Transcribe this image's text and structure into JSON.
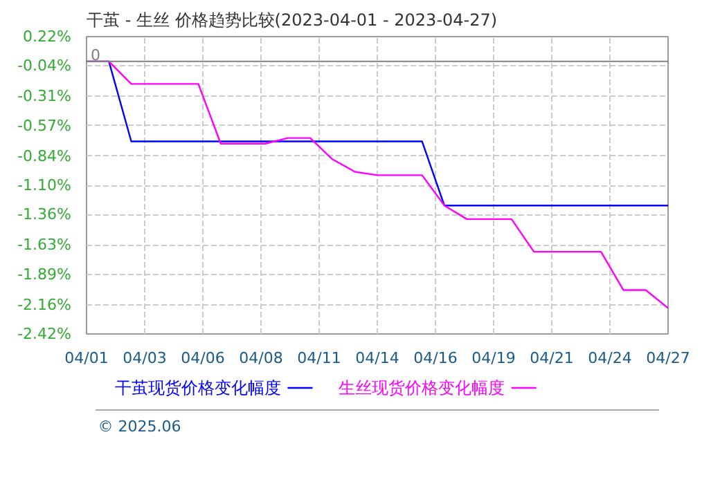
{
  "chart_data": {
    "type": "line",
    "title": "干茧 - 生丝  价格趋势比较(2023-04-01 - 2023-04-27)",
    "x": [
      "2023-04-01",
      "2023-04-02",
      "2023-04-03",
      "2023-04-04",
      "2023-04-05",
      "2023-04-06",
      "2023-04-07",
      "2023-04-08",
      "2023-04-09",
      "2023-04-10",
      "2023-04-11",
      "2023-04-12",
      "2023-04-13",
      "2023-04-14",
      "2023-04-15",
      "2023-04-16",
      "2023-04-17",
      "2023-04-18",
      "2023-04-19",
      "2023-04-20",
      "2023-04-21",
      "2023-04-22",
      "2023-04-23",
      "2023-04-24",
      "2023-04-25",
      "2023-04-26",
      "2023-04-27"
    ],
    "series": [
      {
        "name": "干茧现货价格变化幅度",
        "color": "#0000ff",
        "values": [
          0,
          0,
          -0.71,
          -0.71,
          -0.71,
          -0.71,
          -0.71,
          -0.71,
          -0.71,
          -0.71,
          -0.71,
          -0.71,
          -0.71,
          -0.71,
          -0.71,
          -0.71,
          -1.28,
          -1.28,
          -1.28,
          -1.28,
          -1.28,
          -1.28,
          -1.28,
          -1.28,
          -1.28,
          -1.28,
          -1.28
        ]
      },
      {
        "name": "生丝现货价格变化幅度",
        "color": "#ff00ff",
        "values": [
          0,
          0,
          -0.2,
          -0.2,
          -0.2,
          -0.2,
          -0.73,
          -0.73,
          -0.73,
          -0.68,
          -0.68,
          -0.87,
          -0.98,
          -1.01,
          -1.01,
          -1.01,
          -1.28,
          -1.4,
          -1.4,
          -1.4,
          -1.69,
          -1.69,
          -1.69,
          -1.69,
          -2.03,
          -2.03,
          -2.19
        ]
      }
    ],
    "xlim": [
      "2023-04-01",
      "2023-04-27"
    ],
    "xticks": [
      {
        "value": "2023-04-01T00:00",
        "label": "04/01"
      },
      {
        "value": "2023-04-03T14:24",
        "label": "04/03"
      },
      {
        "value": "2023-04-06T04:48",
        "label": "04/06"
      },
      {
        "value": "2023-04-08T19:12",
        "label": "04/08"
      },
      {
        "value": "2023-04-11T09:36",
        "label": "04/11"
      },
      {
        "value": "2023-04-14T00:00",
        "label": "04/14"
      },
      {
        "value": "2023-04-16T14:24",
        "label": "04/16"
      },
      {
        "value": "2023-04-19T04:48",
        "label": "04/19"
      },
      {
        "value": "2023-04-21T19:12",
        "label": "04/21"
      },
      {
        "value": "2023-04-24T09:36",
        "label": "04/24"
      },
      {
        "value": "2023-04-27T00:00",
        "label": "04/27"
      }
    ],
    "ylim": [
      -2.42,
      0.22
    ],
    "yticks": [
      {
        "value": 0.22,
        "label": "0.22%"
      },
      {
        "value": -0.04,
        "label": "-0.04%"
      },
      {
        "value": -0.31,
        "label": "-0.31%"
      },
      {
        "value": -0.57,
        "label": "-0.57%"
      },
      {
        "value": -0.84,
        "label": "-0.84%"
      },
      {
        "value": -1.1,
        "label": "-1.10%"
      },
      {
        "value": -1.36,
        "label": "-1.36%"
      },
      {
        "value": -1.63,
        "label": "-1.63%"
      },
      {
        "value": -1.89,
        "label": "-1.89%"
      },
      {
        "value": -2.16,
        "label": "-2.16%"
      },
      {
        "value": -2.42,
        "label": "-2.42%"
      }
    ],
    "ref_lines": [
      {
        "axis": "y",
        "value": 0,
        "label": "0",
        "color": "#808080"
      }
    ],
    "annotations": [
      "© 2025.06"
    ],
    "grid": true,
    "legend": "bottom",
    "marker": "none",
    "line_style": "solid"
  }
}
